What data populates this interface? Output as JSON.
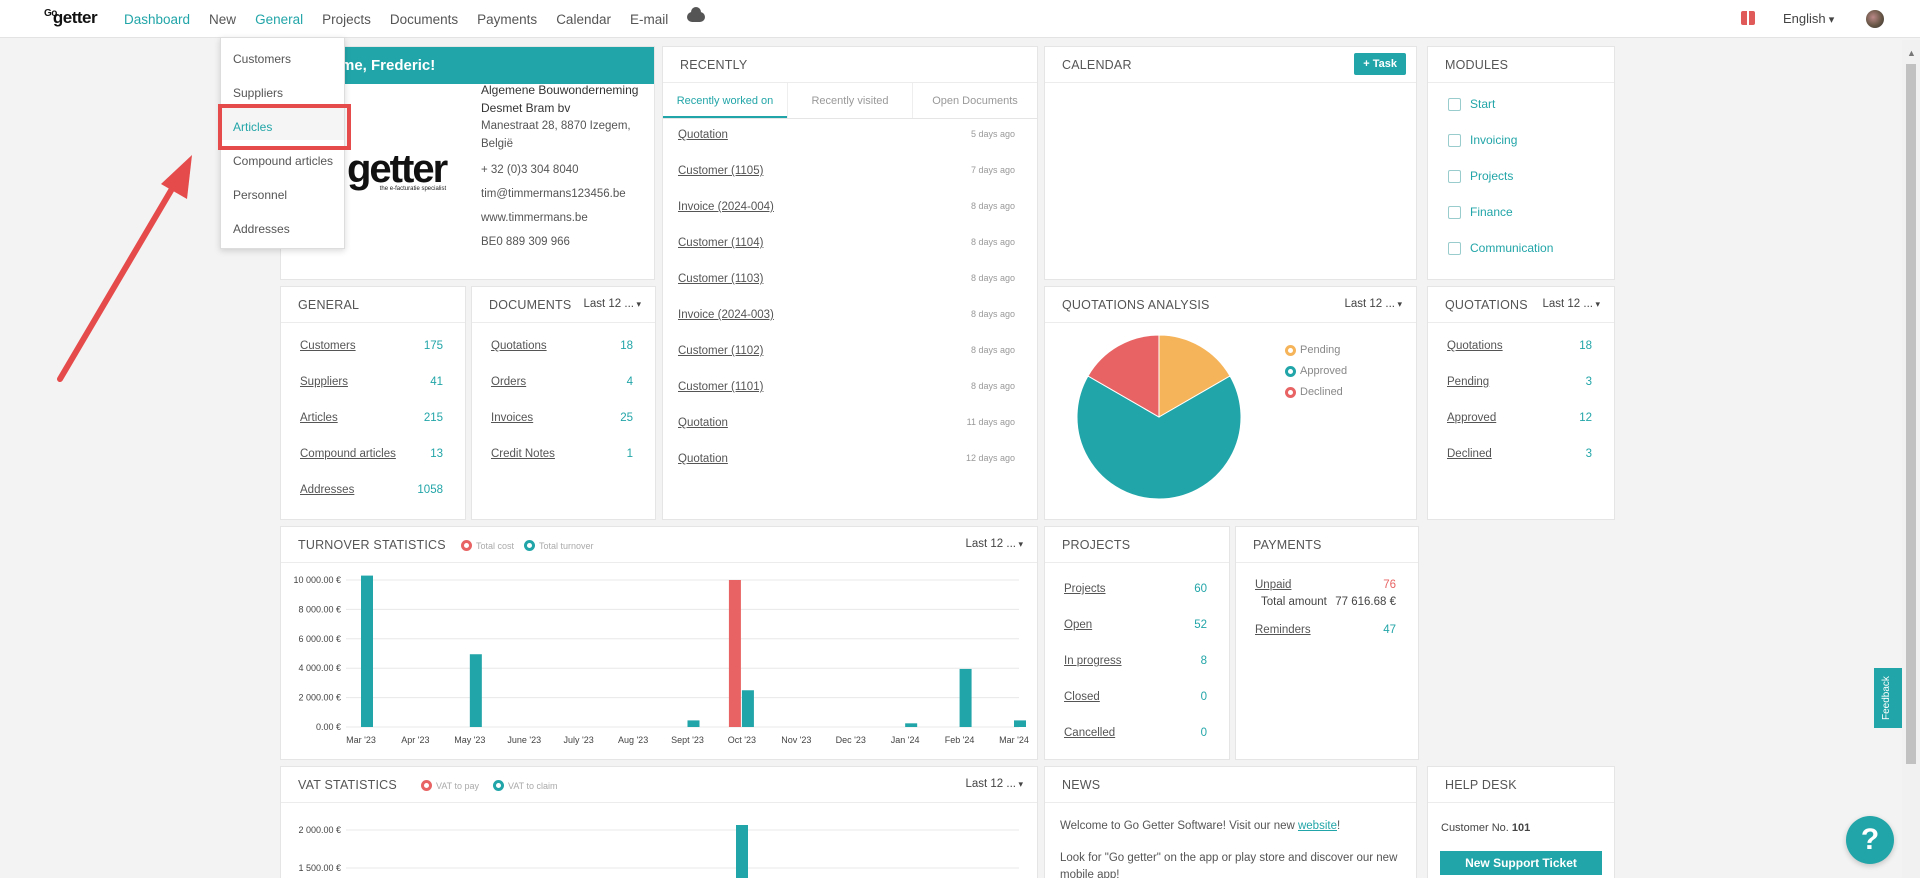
{
  "app": {
    "logo_small": "Go",
    "logo_main": "getter"
  },
  "nav": {
    "items": [
      "Dashboard",
      "New",
      "General",
      "Projects",
      "Documents",
      "Payments",
      "Calendar",
      "E-mail"
    ],
    "language": "English"
  },
  "welcome": {
    "greeting": "me, Frederic!",
    "company_name": "Algemene Bouwonderneming Desmet Bram bv",
    "address": "Manestraat 28, 8870 Izegem, België",
    "phone": "+ 32 (0)3 304 8040",
    "email": "tim@timmermans123456.be",
    "website": "www.timmermans.be",
    "vat": "BE0 889 309 966",
    "logo_text": "getter",
    "logo_tagline": "the e-facturatie specialist"
  },
  "general_menu": {
    "items": [
      "Customers",
      "Suppliers",
      "Articles",
      "Compound articles",
      "Personnel",
      "Addresses"
    ],
    "highlighted": "Articles"
  },
  "recently": {
    "title": "RECENTLY",
    "tabs": [
      "Recently worked on",
      "Recently visited",
      "Open Documents"
    ],
    "rows": [
      {
        "name": "Quotation",
        "time": "5 days ago"
      },
      {
        "name": "Customer (1105)",
        "time": "7 days ago"
      },
      {
        "name": "Invoice (2024-004)",
        "time": "8 days ago"
      },
      {
        "name": "Customer (1104)",
        "time": "8 days ago"
      },
      {
        "name": "Customer (1103)",
        "time": "8 days ago"
      },
      {
        "name": "Invoice (2024-003)",
        "time": "8 days ago"
      },
      {
        "name": "Customer (1102)",
        "time": "8 days ago"
      },
      {
        "name": "Customer (1101)",
        "time": "8 days ago"
      },
      {
        "name": "Quotation",
        "time": "11 days ago"
      },
      {
        "name": "Quotation",
        "time": "12 days ago"
      }
    ]
  },
  "calendar": {
    "title": "CALENDAR",
    "task_button": "+ Task"
  },
  "modules": {
    "title": "MODULES",
    "items": [
      "Start",
      "Invoicing",
      "Projects",
      "Finance",
      "Communication"
    ]
  },
  "general": {
    "title": "GENERAL",
    "rows": [
      {
        "label": "Customers",
        "value": "175"
      },
      {
        "label": "Suppliers",
        "value": "41"
      },
      {
        "label": "Articles",
        "value": "215"
      },
      {
        "label": "Compound articles",
        "value": "13"
      },
      {
        "label": "Addresses",
        "value": "1058"
      }
    ]
  },
  "documents": {
    "title": "DOCUMENTS",
    "period": "Last 12 ...",
    "rows": [
      {
        "label": "Quotations",
        "value": "18"
      },
      {
        "label": "Orders",
        "value": "4"
      },
      {
        "label": "Invoices",
        "value": "25"
      },
      {
        "label": "Credit Notes",
        "value": "1"
      }
    ]
  },
  "quotations_analysis": {
    "title": "QUOTATIONS ANALYSIS",
    "period": "Last 12 ...",
    "legend": [
      "Pending",
      "Approved",
      "Declined"
    ]
  },
  "quotations": {
    "title": "QUOTATIONS",
    "period": "Last 12 ...",
    "rows": [
      {
        "label": "Quotations",
        "value": "18"
      },
      {
        "label": "Pending",
        "value": "3"
      },
      {
        "label": "Approved",
        "value": "12"
      },
      {
        "label": "Declined",
        "value": "3"
      }
    ]
  },
  "turnover": {
    "title": "TURNOVER STATISTICS",
    "legend": [
      "Total cost",
      "Total turnover"
    ],
    "period": "Last 12 ..."
  },
  "projects": {
    "title": "PROJECTS",
    "rows": [
      {
        "label": "Projects",
        "value": "60"
      },
      {
        "label": "Open",
        "value": "52"
      },
      {
        "label": "In progress",
        "value": "8"
      },
      {
        "label": "Closed",
        "value": "0"
      },
      {
        "label": "Cancelled",
        "value": "0"
      }
    ]
  },
  "payments": {
    "title": "PAYMENTS",
    "unpaid_label": "Unpaid",
    "unpaid_value": "76",
    "total_label": "Total amount",
    "total_value": "77 616.68 €",
    "reminders_label": "Reminders",
    "reminders_value": "47"
  },
  "vat": {
    "title": "VAT STATISTICS",
    "legend": [
      "VAT to pay",
      "VAT to claim"
    ],
    "period": "Last 12 ..."
  },
  "news": {
    "title": "NEWS",
    "line1_prefix": "Welcome to Go Getter Software! Visit our new ",
    "line1_link": "website",
    "line1_suffix": "!",
    "line2": "Look for \"Go getter\" on the app or play store and discover our new mobile app!"
  },
  "helpdesk": {
    "title": "HELP DESK",
    "customer_label": "Customer No.",
    "customer_no": "101",
    "ticket_button": "New Support Ticket"
  },
  "feedback_label": "Feedback",
  "help_label": "?",
  "colors": {
    "accent": "#22a5a8",
    "red": "#e86464",
    "orange": "#f6b45a",
    "annotation": "#e54b4b"
  },
  "chart_data": [
    {
      "type": "pie",
      "title": "QUOTATIONS ANALYSIS",
      "categories": [
        "Pending",
        "Approved",
        "Declined"
      ],
      "values": [
        3,
        12,
        3
      ],
      "colors": [
        "#f6b45a",
        "#22a5a8",
        "#e86464"
      ]
    },
    {
      "type": "bar",
      "title": "TURNOVER STATISTICS",
      "categories": [
        "Mar '23",
        "Apr '23",
        "May '23",
        "June '23",
        "July '23",
        "Aug '23",
        "Sept '23",
        "Oct '23",
        "Nov '23",
        "Dec '23",
        "Jan '24",
        "Feb '24",
        "Mar '24"
      ],
      "y_ticks": [
        "0.00 €",
        "2 000.00 €",
        "4 000.00 €",
        "6 000.00 €",
        "8 000.00 €",
        "10 000.00 €"
      ],
      "ylim": [
        0,
        10000
      ],
      "series": [
        {
          "name": "Total cost",
          "color": "#e86464",
          "values": [
            0,
            0,
            0,
            0,
            0,
            0,
            0,
            10000,
            0,
            0,
            0,
            0,
            0
          ]
        },
        {
          "name": "Total turnover",
          "color": "#22a5a8",
          "values": [
            10300,
            0,
            4950,
            0,
            0,
            0,
            450,
            2500,
            0,
            0,
            250,
            3950,
            450
          ]
        }
      ]
    },
    {
      "type": "bar",
      "title": "VAT STATISTICS",
      "y_ticks": [
        "1 500.00 €",
        "2 000.00 €"
      ],
      "series": [
        {
          "name": "VAT to pay",
          "color": "#e86464"
        },
        {
          "name": "VAT to claim",
          "color": "#22a5a8"
        }
      ]
    }
  ]
}
